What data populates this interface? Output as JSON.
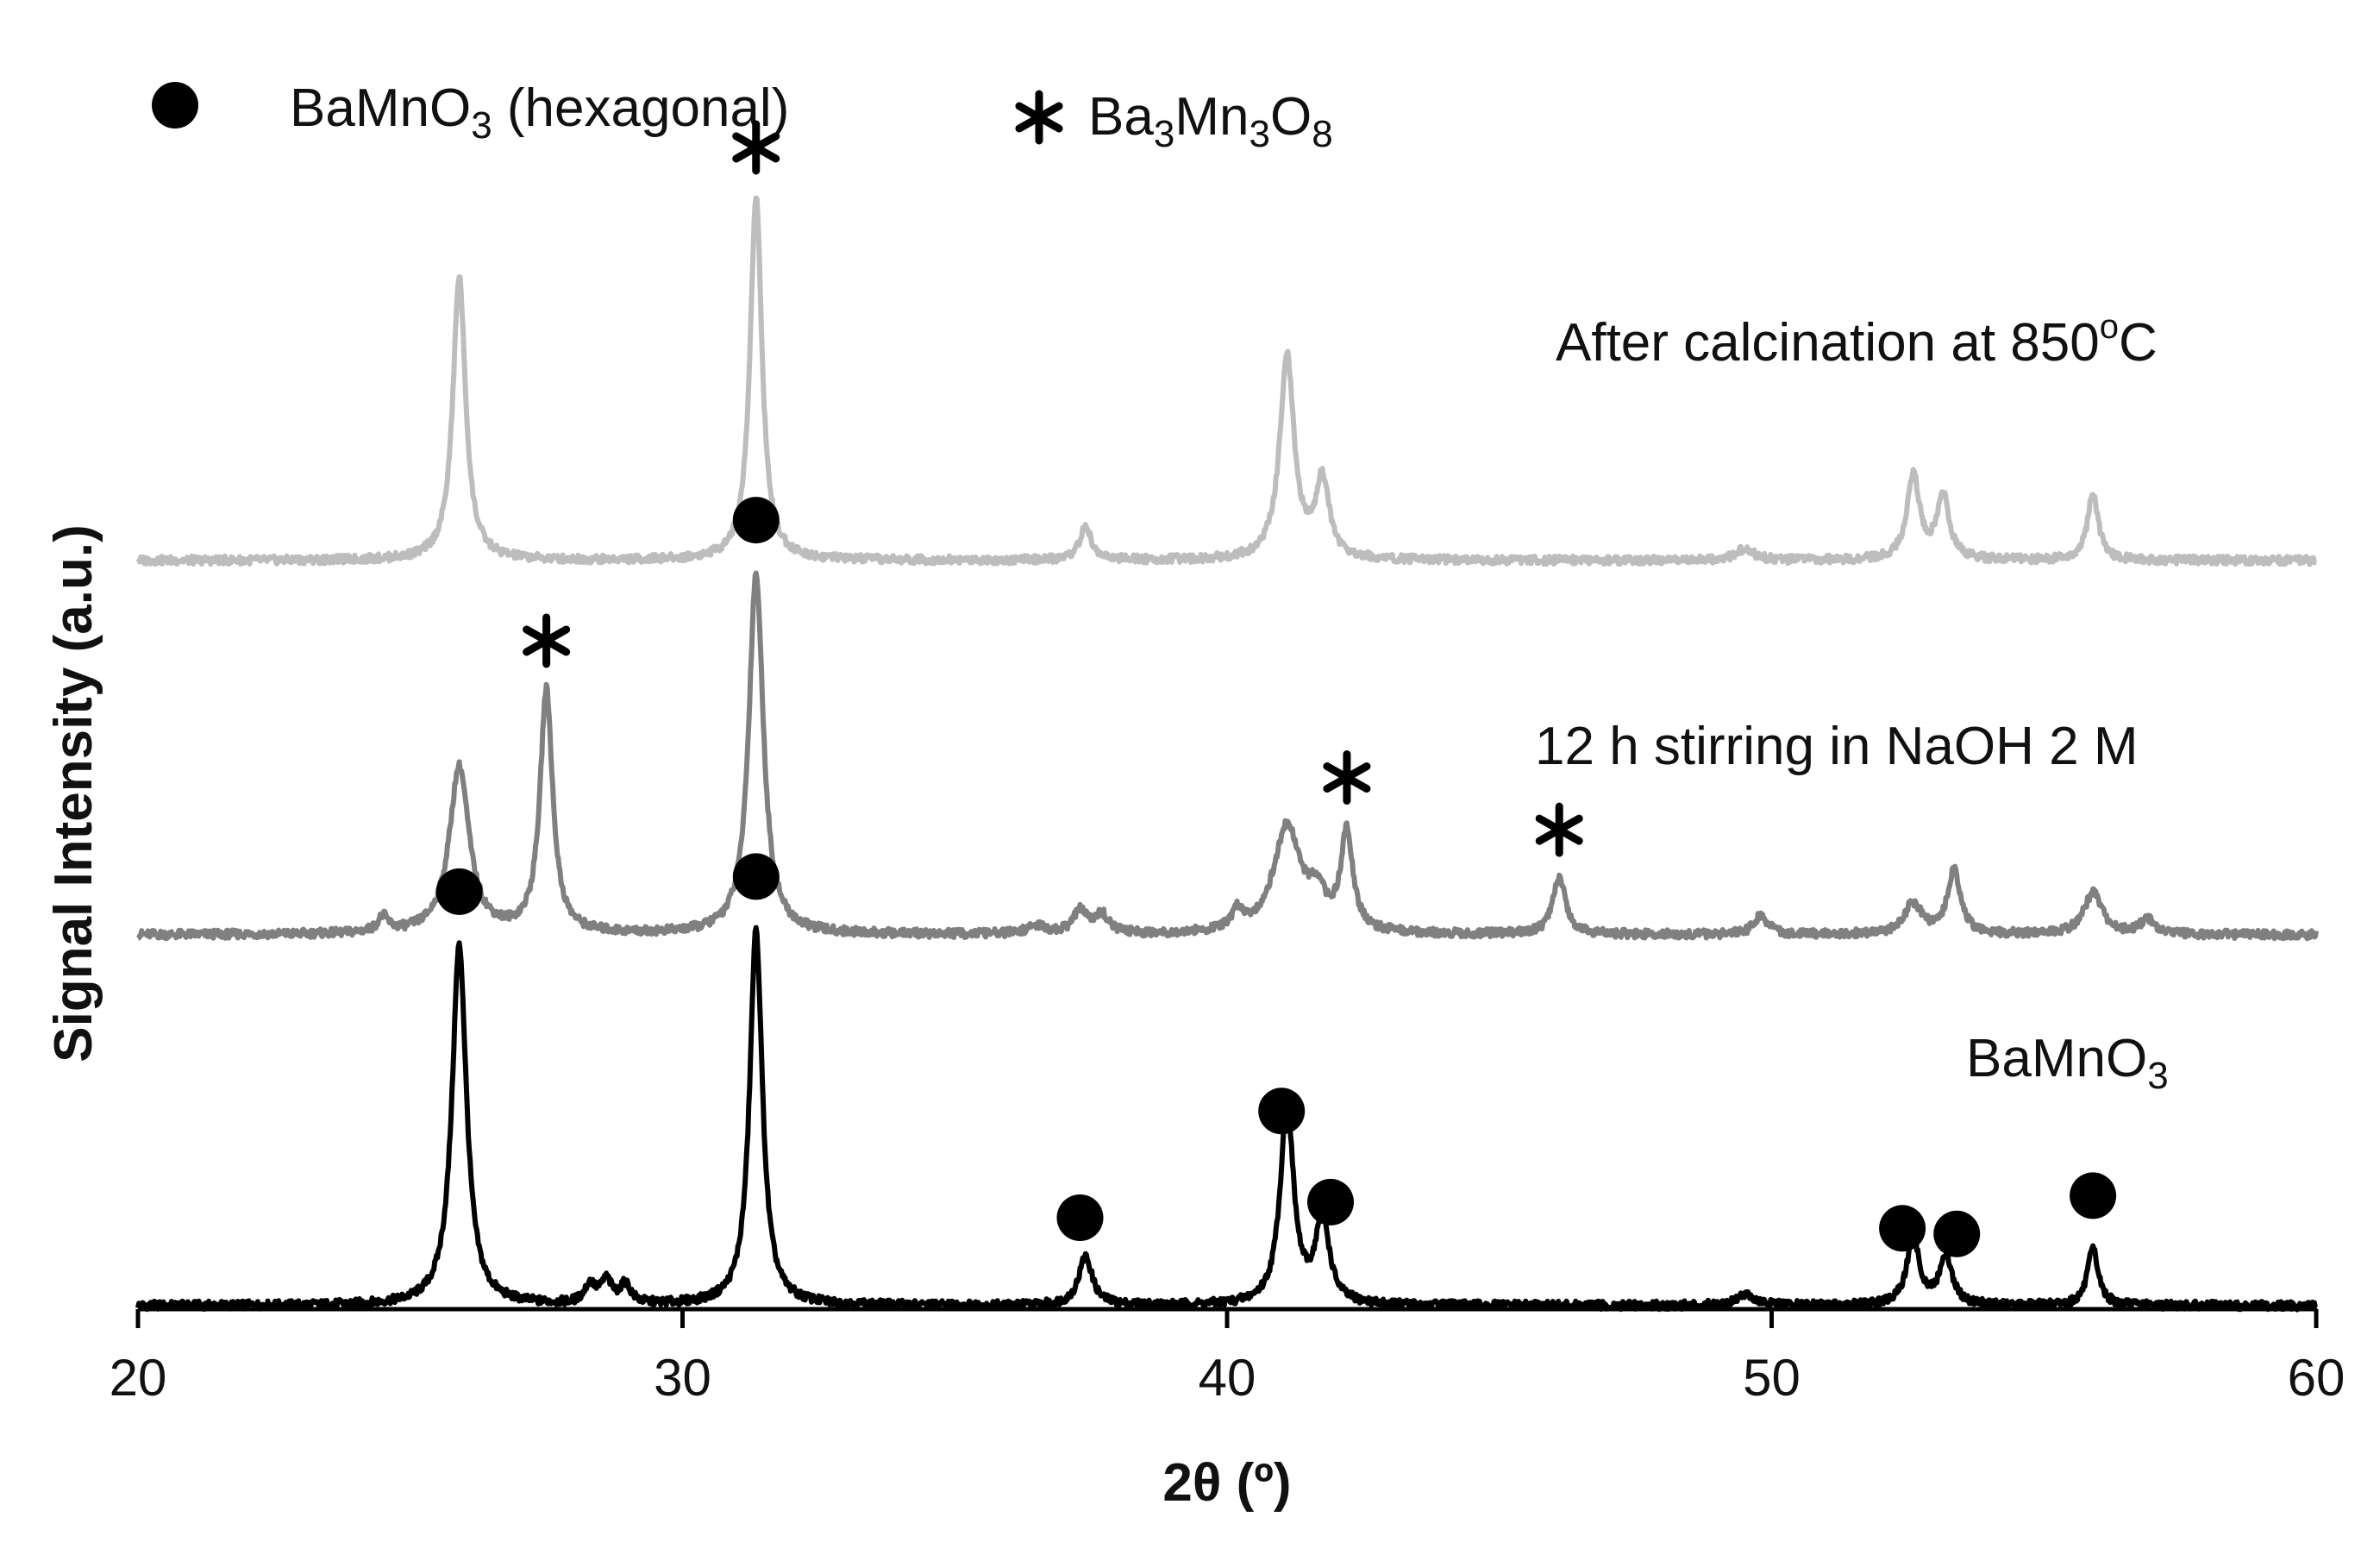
{
  "chart_data": {
    "type": "line",
    "xlabel": "2θ (º)",
    "ylabel": "Signal Intensity (a.u.)",
    "xlim": [
      20,
      60
    ],
    "xticks": [
      20,
      30,
      40,
      50,
      60
    ],
    "y_scale": "arbitrary units, stacked traces with vertical offsets",
    "grid": false,
    "legend_position": "top-left",
    "legend": [
      {
        "marker": "circle",
        "base": "BaMnO",
        "sub": "3",
        "after": " (hexagonal)"
      },
      {
        "marker": "asterisk",
        "parts": [
          {
            "t": "Ba"
          },
          {
            "t": "3",
            "sub": true
          },
          {
            "t": "Mn"
          },
          {
            "t": "3",
            "sub": true
          },
          {
            "t": "O"
          },
          {
            "t": "8",
            "sub": true
          }
        ]
      }
    ],
    "series": [
      {
        "name": "BaMnO3",
        "label_parts": [
          {
            "t": "BaMnO"
          },
          {
            "t": "3",
            "sub": true
          }
        ],
        "color": "#000000",
        "baseline": 0,
        "peaks": [
          {
            "x": 25.9,
            "h": 0.96,
            "w": 0.16
          },
          {
            "x": 31.35,
            "h": 1.0,
            "w": 0.14
          },
          {
            "x": 37.4,
            "h": 0.13,
            "w": 0.15
          },
          {
            "x": 41.1,
            "h": 0.53,
            "w": 0.15
          },
          {
            "x": 41.75,
            "h": 0.23,
            "w": 0.15
          },
          {
            "x": 52.6,
            "h": 0.18,
            "w": 0.14
          },
          {
            "x": 53.2,
            "h": 0.13,
            "w": 0.14
          },
          {
            "x": 55.9,
            "h": 0.15,
            "w": 0.12
          },
          {
            "x": 28.3,
            "h": 0.05,
            "w": 0.12
          },
          {
            "x": 28.6,
            "h": 0.06,
            "w": 0.12
          },
          {
            "x": 28.95,
            "h": 0.05,
            "w": 0.12
          },
          {
            "x": 49.5,
            "h": 0.03,
            "w": 0.2
          }
        ],
        "markers": [
          {
            "x": 25.9,
            "symbol": "circle"
          },
          {
            "x": 31.35,
            "symbol": "circle"
          },
          {
            "x": 37.3,
            "symbol": "circle"
          },
          {
            "x": 41.0,
            "symbol": "circle"
          },
          {
            "x": 41.9,
            "symbol": "circle"
          },
          {
            "x": 52.4,
            "symbol": "circle"
          },
          {
            "x": 53.4,
            "symbol": "circle"
          },
          {
            "x": 55.9,
            "symbol": "circle"
          }
        ]
      },
      {
        "name": "12 h stirring in NaOH 2 M",
        "label_parts": [
          {
            "t": "12 h stirring in NaOH 2 M"
          }
        ],
        "color": "#808080",
        "baseline": 1,
        "peaks": [
          {
            "x": 24.5,
            "h": 0.04,
            "w": 0.12
          },
          {
            "x": 25.9,
            "h": 0.44,
            "w": 0.22
          },
          {
            "x": 27.5,
            "h": 0.64,
            "w": 0.14
          },
          {
            "x": 31.35,
            "h": 0.95,
            "w": 0.16
          },
          {
            "x": 36.5,
            "h": 0.02,
            "w": 0.2
          },
          {
            "x": 37.3,
            "h": 0.06,
            "w": 0.15
          },
          {
            "x": 37.7,
            "h": 0.05,
            "w": 0.15
          },
          {
            "x": 40.2,
            "h": 0.05,
            "w": 0.12
          },
          {
            "x": 41.1,
            "h": 0.28,
            "w": 0.3
          },
          {
            "x": 41.65,
            "h": 0.08,
            "w": 0.2
          },
          {
            "x": 42.2,
            "h": 0.26,
            "w": 0.13
          },
          {
            "x": 46.1,
            "h": 0.15,
            "w": 0.14
          },
          {
            "x": 49.8,
            "h": 0.05,
            "w": 0.15
          },
          {
            "x": 52.6,
            "h": 0.08,
            "w": 0.2
          },
          {
            "x": 53.35,
            "h": 0.17,
            "w": 0.14
          },
          {
            "x": 55.9,
            "h": 0.11,
            "w": 0.2
          },
          {
            "x": 56.9,
            "h": 0.04,
            "w": 0.15
          }
        ],
        "markers": [
          {
            "x": 27.5,
            "symbol": "asterisk"
          },
          {
            "x": 31.35,
            "symbol": "circle"
          },
          {
            "x": 42.2,
            "symbol": "asterisk"
          },
          {
            "x": 46.1,
            "symbol": "asterisk"
          }
        ]
      },
      {
        "name": "After calcination at 850ºC",
        "label_parts": [
          {
            "t": "After calcination at 850"
          },
          {
            "t": "o",
            "sup": true
          },
          {
            "t": "C"
          }
        ],
        "color": "#bdbdbd",
        "baseline": 2,
        "peaks": [
          {
            "x": 25.9,
            "h": 0.77,
            "w": 0.14
          },
          {
            "x": 31.35,
            "h": 0.99,
            "w": 0.13
          },
          {
            "x": 37.4,
            "h": 0.09,
            "w": 0.13
          },
          {
            "x": 41.1,
            "h": 0.55,
            "w": 0.16
          },
          {
            "x": 41.75,
            "h": 0.21,
            "w": 0.15
          },
          {
            "x": 49.5,
            "h": 0.03,
            "w": 0.2
          },
          {
            "x": 52.6,
            "h": 0.23,
            "w": 0.14
          },
          {
            "x": 53.15,
            "h": 0.17,
            "w": 0.14
          },
          {
            "x": 55.9,
            "h": 0.18,
            "w": 0.12
          }
        ],
        "markers": [
          {
            "x": 31.35,
            "symbol": "asterisk"
          }
        ]
      }
    ]
  }
}
